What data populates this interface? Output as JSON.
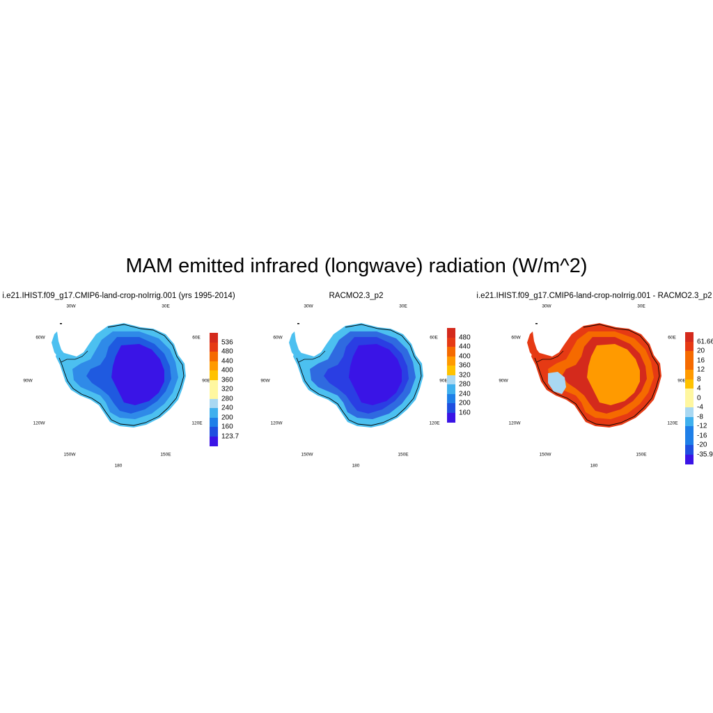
{
  "title": "MAM emitted infrared (longwave) radiation (W/m^2)",
  "panels": [
    {
      "title": "i.e21.IHIST.f09_g17.CMIP6-land-crop-noIrrig.001 (yrs 1995-2014)",
      "lon_labels": [
        "30W",
        "30E",
        "60W",
        "60E",
        "90W",
        "90E",
        "120W",
        "120E",
        "150W",
        "150E",
        "180"
      ],
      "colorbar": {
        "colors": [
          "#3a14e6",
          "#1f4fe0",
          "#1e7fe8",
          "#3fb0ee",
          "#a9d8f2",
          "#fff7a0",
          "#ffc200",
          "#ff9a00",
          "#f56a00",
          "#e63a14",
          "#d42a1c"
        ],
        "labels": [
          "536",
          "480",
          "440",
          "400",
          "360",
          "320",
          "280",
          "240",
          "200",
          "160",
          "123.7"
        ]
      },
      "palette": {
        "outer": "#4cc0f0",
        "ring": "#2f8ae8",
        "inner": "#1f5ae0",
        "core": "#3a14e6"
      }
    },
    {
      "title": "RACMO2.3_p2",
      "lon_labels": [
        "30W",
        "30E",
        "60W",
        "60E",
        "90W",
        "90E",
        "120W",
        "120E",
        "150W",
        "150E",
        "180"
      ],
      "colorbar": {
        "colors": [
          "#3a14e6",
          "#1f4fe0",
          "#1e7fe8",
          "#3fb0ee",
          "#a9d8f2",
          "#fff7a0",
          "#ffc200",
          "#ff9a00",
          "#f56a00",
          "#e63a14",
          "#d42a1c"
        ],
        "labels": [
          "480",
          "440",
          "400",
          "360",
          "320",
          "280",
          "240",
          "200",
          "160"
        ]
      },
      "palette": {
        "outer": "#4cc0f0",
        "ring": "#2f6ae0",
        "inner": "#2a3ee3",
        "core": "#3a14e6"
      }
    },
    {
      "title": "i.e21.IHIST.f09_g17.CMIP6-land-crop-noIrrig.001 - RACMO2.3_p2",
      "lon_labels": [
        "30W",
        "30E",
        "60W",
        "60E",
        "90W",
        "90E",
        "120W",
        "120E",
        "150W",
        "150E",
        "180"
      ],
      "colorbar": {
        "colors": [
          "#3a14e6",
          "#1f4fe0",
          "#1e7fe8",
          "#3fb0ee",
          "#a9d8f2",
          "#fff7a0",
          "#ffc200",
          "#ff9a00",
          "#f56a00",
          "#e63a14",
          "#d42a1c"
        ],
        "labels": [
          "61.66",
          "20",
          "16",
          "12",
          "8",
          "4",
          "0",
          "-4",
          "-8",
          "-12",
          "-16",
          "-20",
          "-35.94"
        ]
      },
      "palette": {
        "outer": "#e63a14",
        "ring": "#f56a00",
        "inner": "#d42a1c",
        "core": "#ff9a00",
        "cool": "#a9d8f2"
      }
    }
  ]
}
